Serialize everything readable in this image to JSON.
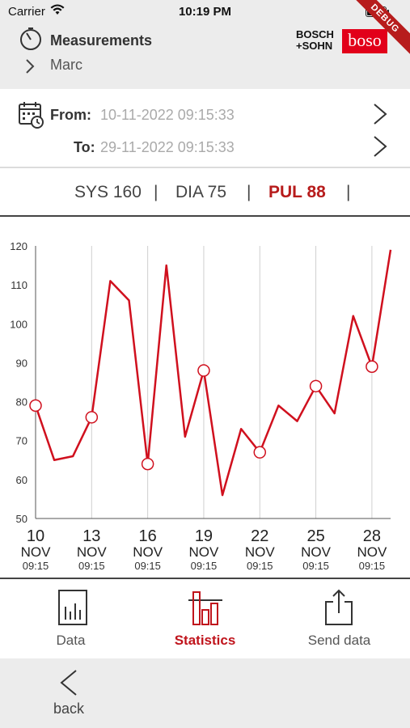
{
  "status_bar": {
    "carrier": "Carrier",
    "time": "10:19 PM"
  },
  "debug_ribbon": "DEBUG",
  "header": {
    "title": "Measurements",
    "breadcrumb": "Marc",
    "brand_text_line1": "BOSCH",
    "brand_text_line2": "+SOHN",
    "brand_logo": "boso",
    "brand_color": "#e2001a"
  },
  "date_range": {
    "from_label": "From:",
    "from_value": "10-11-2022 09:15:33",
    "to_label": "To:",
    "to_value": "29-11-2022 09:15:33"
  },
  "measure_tabs": [
    {
      "label": "SYS 160",
      "active": false
    },
    {
      "label": "DIA 75",
      "active": false
    },
    {
      "label": "PUL 88",
      "active": true
    }
  ],
  "separator": "|",
  "accent_color": "#d0101e",
  "chart_data": {
    "type": "line",
    "ylim": [
      50,
      120
    ],
    "yticks": [
      50,
      60,
      70,
      80,
      90,
      100,
      110,
      120
    ],
    "xlim": [
      10,
      29
    ],
    "xticks": [
      {
        "x": 10,
        "day": "10",
        "month": "NOV",
        "time": "09:15"
      },
      {
        "x": 13,
        "day": "13",
        "month": "NOV",
        "time": "09:15"
      },
      {
        "x": 16,
        "day": "16",
        "month": "NOV",
        "time": "09:15"
      },
      {
        "x": 19,
        "day": "19",
        "month": "NOV",
        "time": "09:15"
      },
      {
        "x": 22,
        "day": "22",
        "month": "NOV",
        "time": "09:15"
      },
      {
        "x": 25,
        "day": "25",
        "month": "NOV",
        "time": "09:15"
      },
      {
        "x": 28,
        "day": "28",
        "month": "NOV",
        "time": "09:15"
      }
    ],
    "series": [
      {
        "x": [
          10,
          11,
          12,
          13,
          14,
          15,
          16,
          17,
          18,
          19,
          20,
          21,
          22,
          23,
          24,
          25,
          26,
          27,
          28,
          29
        ],
        "y": [
          79,
          65,
          66,
          76,
          111,
          106,
          64,
          115,
          71,
          88,
          56,
          73,
          67,
          79,
          75,
          84,
          77,
          102,
          89,
          119
        ]
      }
    ],
    "markers_at_ticks": true,
    "grid": "vertical"
  },
  "tabbar": [
    {
      "label": "Data",
      "icon": "bar-chart-icon",
      "active": false
    },
    {
      "label": "Statistics",
      "icon": "statistics-icon",
      "active": true
    },
    {
      "label": "Send data",
      "icon": "share-icon",
      "active": false
    }
  ],
  "footer": {
    "back_label": "back"
  }
}
